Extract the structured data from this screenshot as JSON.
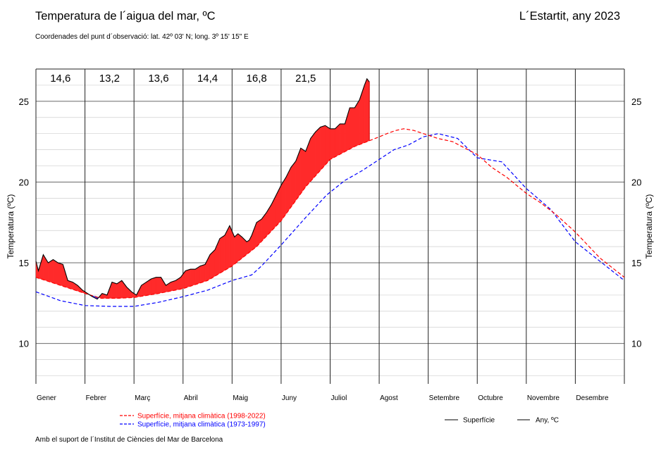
{
  "header": {
    "title": "Temperatura de l´aigua del mar, ºC",
    "subtitle": "Coordenades del punt d´observació: lat. 42º 03' N; long. 3º 15' 15\" E",
    "location_year": "L´Estartit, any 2023"
  },
  "footer": {
    "credit": "Amb el suport de l´Institut de Ciències del Mar de Barcelona"
  },
  "chart_data": {
    "type": "line",
    "ylabel": "Temperatura (ºC)",
    "ylim": [
      7.5,
      27
    ],
    "yticks": [
      10,
      15,
      20,
      25
    ],
    "xlim": [
      0,
      12
    ],
    "months": [
      "Gener",
      "Febrer",
      "Març",
      "Abril",
      "Maig",
      "Juny",
      "Juliol",
      "Agost",
      "Setembre",
      "Octubre",
      "Novembre",
      "Desembre"
    ],
    "monthly_means": [
      {
        "month": "Gener",
        "value": "14,6"
      },
      {
        "month": "Febrer",
        "value": "13,2"
      },
      {
        "month": "Març",
        "value": "13,6"
      },
      {
        "month": "Abril",
        "value": "14,4"
      },
      {
        "month": "Maig",
        "value": "16,8"
      },
      {
        "month": "Juny",
        "value": "21,5"
      }
    ],
    "grid": true,
    "series": [
      {
        "name": "Superfície, mitjana climàtica (1998-2022)",
        "color": "#ff0000",
        "style": "dashed",
        "x": [
          0,
          0.5,
          1,
          1.33,
          1.67,
          2,
          2.5,
          3,
          3.5,
          4,
          4.5,
          5,
          5.5,
          6,
          6.5,
          7,
          7.2,
          7.35,
          7.5,
          7.7,
          8,
          8.2,
          8.5,
          9,
          9.3,
          9.6,
          10,
          10.3,
          10.6,
          11,
          11.5,
          12
        ],
        "y": [
          14.1,
          13.6,
          13.1,
          12.8,
          12.8,
          12.85,
          13.1,
          13.4,
          13.9,
          14.8,
          16.0,
          17.6,
          19.7,
          21.4,
          22.2,
          22.8,
          23.05,
          23.2,
          23.3,
          23.2,
          22.9,
          22.7,
          22.5,
          21.7,
          20.9,
          20.3,
          19.3,
          18.7,
          18.0,
          16.9,
          15.3,
          14.1
        ]
      },
      {
        "name": "Superfície, mitjana climàtica (1973-1997)",
        "color": "#0000ff",
        "style": "dashed",
        "x": [
          0,
          0.5,
          1,
          1.5,
          2,
          2.5,
          3,
          3.5,
          4,
          4.4,
          4.6,
          5,
          5.5,
          5.93,
          6.3,
          6.65,
          7,
          7.3,
          7.6,
          7.9,
          8.2,
          8.6,
          9,
          9.5,
          10,
          10.5,
          11,
          11.5,
          12
        ],
        "y": [
          13.2,
          12.65,
          12.35,
          12.3,
          12.3,
          12.55,
          12.9,
          13.3,
          13.9,
          14.25,
          14.8,
          16.1,
          17.8,
          19.2,
          20.1,
          20.7,
          21.4,
          22.0,
          22.3,
          22.8,
          23.0,
          22.7,
          21.5,
          21.25,
          19.6,
          18.3,
          16.3,
          15.1,
          13.9
        ]
      },
      {
        "name": "Superfície",
        "color": "#000000",
        "style": "solid",
        "x": [
          0,
          0.05,
          0.15,
          0.25,
          0.35,
          0.45,
          0.55,
          0.65,
          0.75,
          0.85,
          0.95,
          1.05,
          1.15,
          1.25,
          1.35,
          1.45,
          1.55,
          1.65,
          1.75,
          1.85,
          1.95,
          2.05,
          2.15,
          2.25,
          2.35,
          2.45,
          2.55,
          2.65,
          2.75,
          2.85,
          2.95,
          3.05,
          3.15,
          3.25,
          3.35,
          3.45,
          3.55,
          3.65,
          3.75,
          3.85,
          3.95,
          4.05,
          4.12,
          4.2,
          4.3,
          4.35,
          4.4,
          4.5,
          4.6,
          4.7,
          4.8,
          4.9,
          5.0,
          5.1,
          5.2,
          5.3,
          5.4,
          5.5,
          5.6,
          5.7,
          5.8,
          5.9,
          6.0,
          6.1,
          6.2,
          6.3,
          6.4,
          6.5,
          6.6,
          6.7,
          6.75,
          6.8
        ],
        "y": [
          15.1,
          14.5,
          15.5,
          15.0,
          15.2,
          15.0,
          14.9,
          13.9,
          13.8,
          13.6,
          13.3,
          13.1,
          12.9,
          12.75,
          13.1,
          13.0,
          13.8,
          13.7,
          13.9,
          13.5,
          13.2,
          13.0,
          13.6,
          13.8,
          14.0,
          14.1,
          14.1,
          13.6,
          13.8,
          13.9,
          14.1,
          14.5,
          14.6,
          14.6,
          14.8,
          14.9,
          15.5,
          15.8,
          16.5,
          16.7,
          17.3,
          16.6,
          16.8,
          16.6,
          16.3,
          16.4,
          16.7,
          17.5,
          17.7,
          18.1,
          18.6,
          19.2,
          19.8,
          20.3,
          20.9,
          21.3,
          22.1,
          21.9,
          22.7,
          23.1,
          23.4,
          23.5,
          23.3,
          23.3,
          23.6,
          23.6,
          24.6,
          24.6,
          25.1,
          26.0,
          26.4,
          26.2
        ]
      }
    ],
    "legend": [
      {
        "label": "Superfície, mitjana climàtica (1998-2022)",
        "color": "#ff0000",
        "style": "dashed"
      },
      {
        "label": "Superfície, mitjana climàtica (1973-1997)",
        "color": "#0000ff",
        "style": "dashed"
      },
      {
        "label": "Superfície",
        "color": "#000000",
        "style": "solid"
      },
      {
        "label": "Any,  ºC",
        "color": "#000000",
        "style": "solid"
      }
    ],
    "colors": {
      "above_mean_fill": "#ff2a2a",
      "below_mean_fill": "#3333ee"
    }
  }
}
